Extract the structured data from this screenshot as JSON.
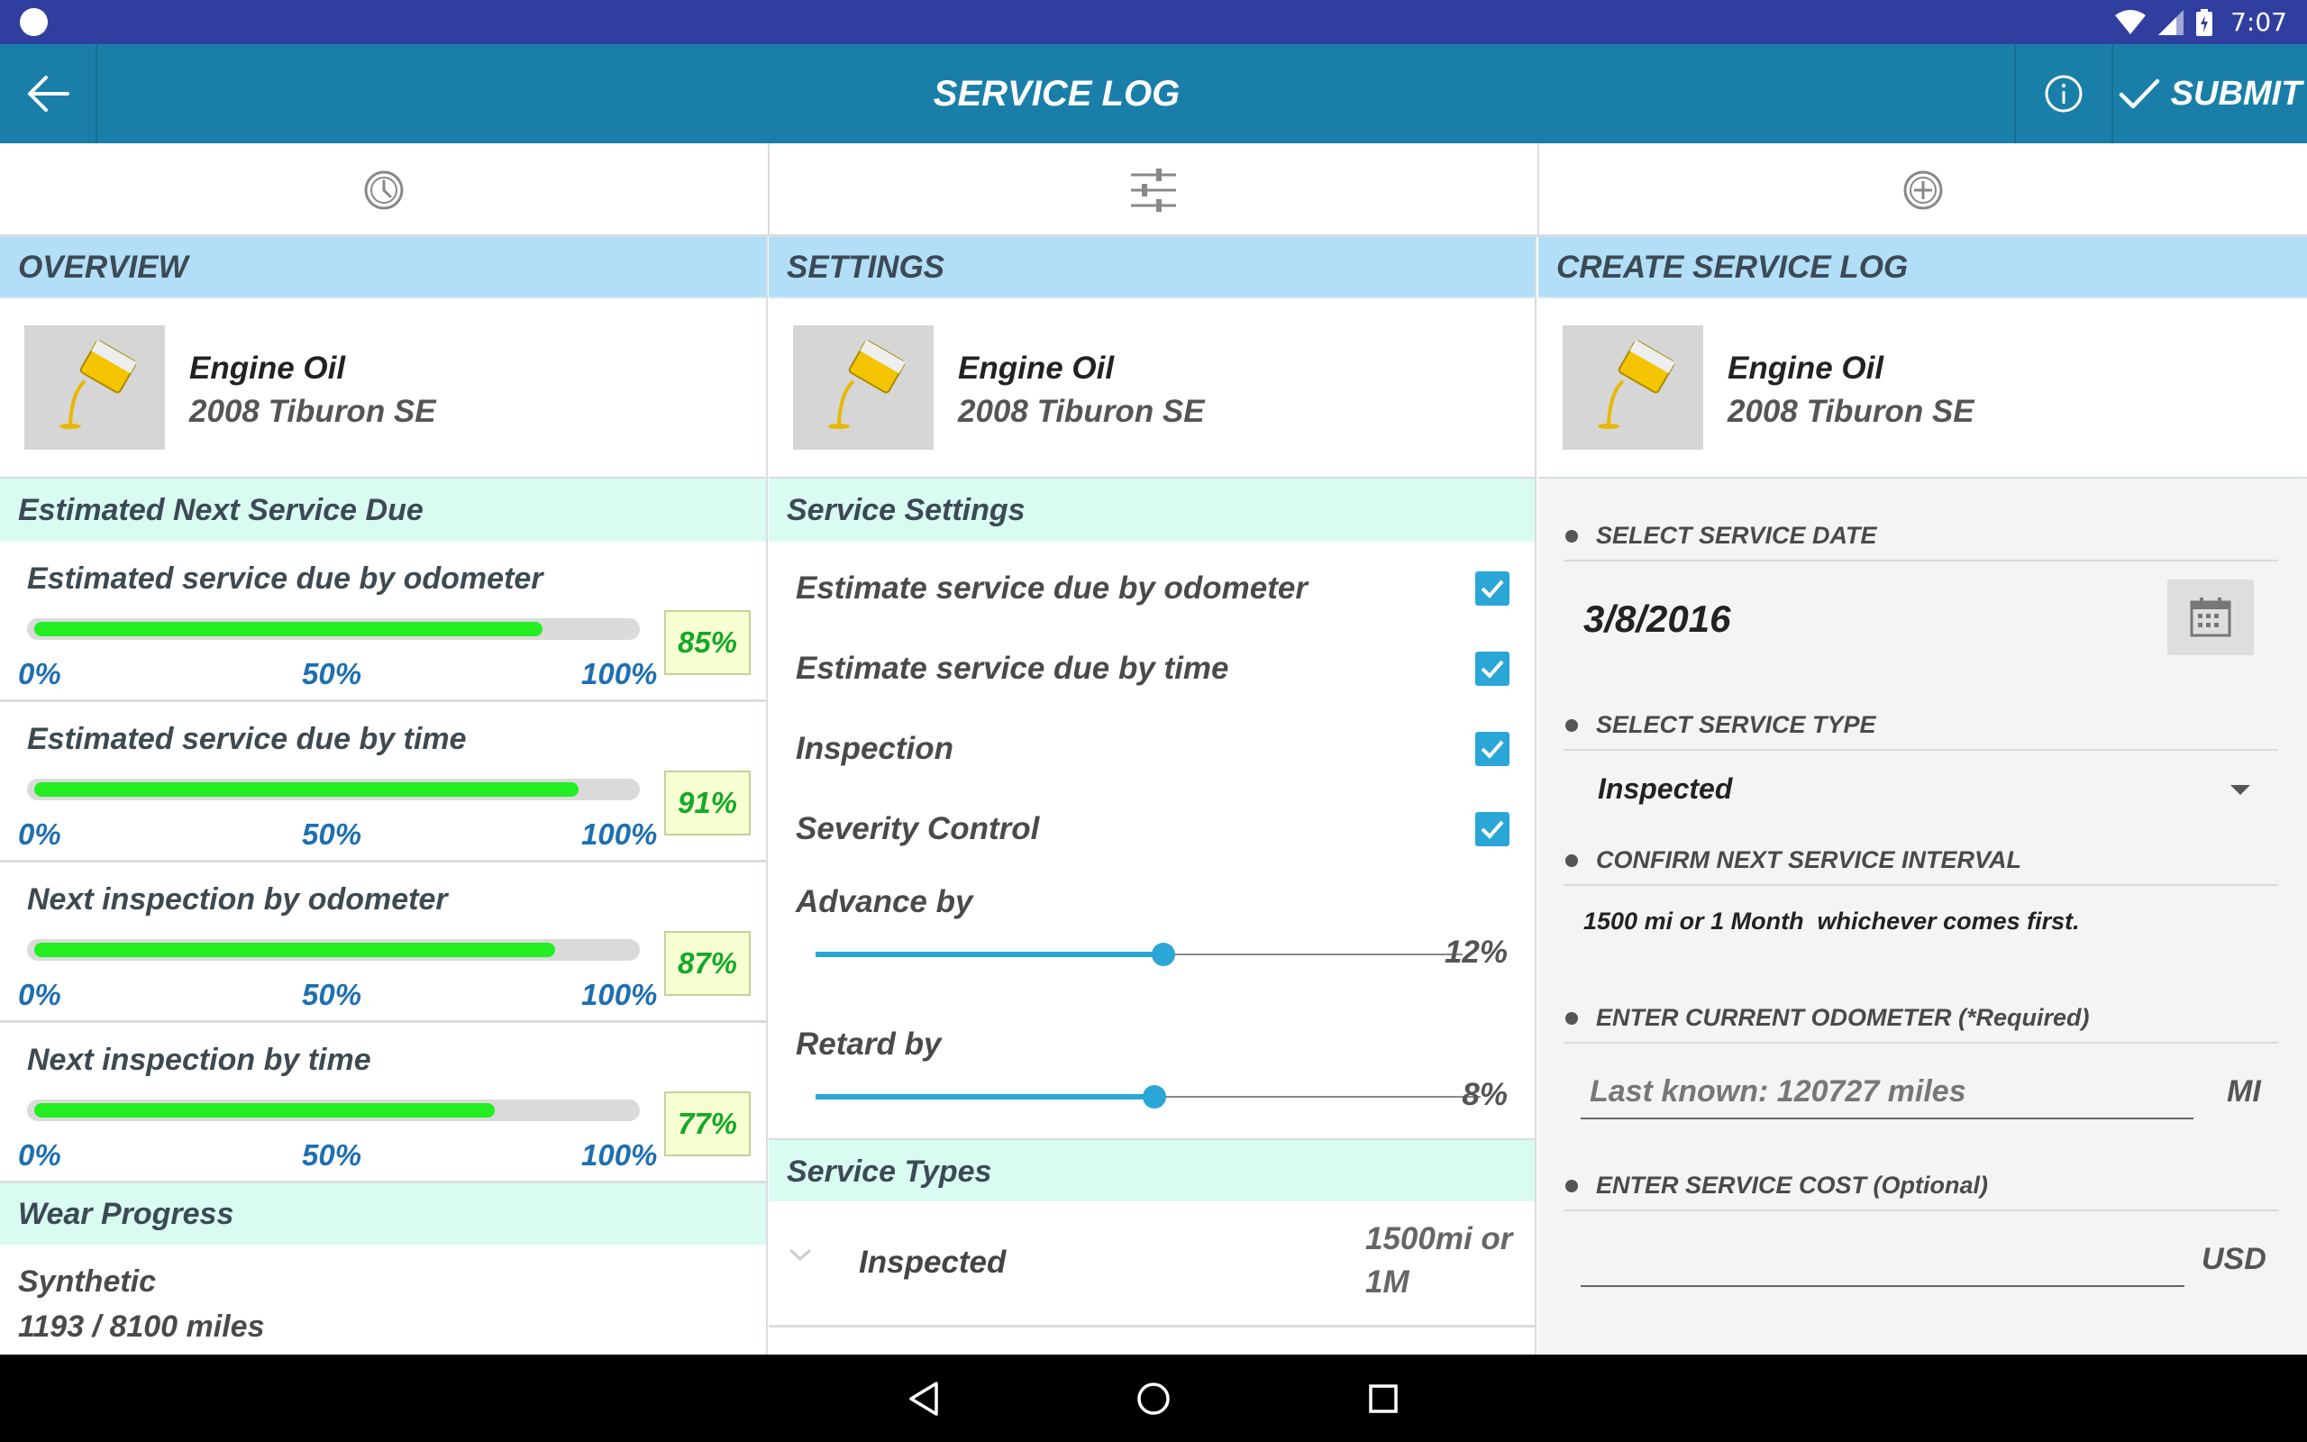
{
  "status_bar": {
    "time": "7:07",
    "icons": [
      "wifi-icon",
      "signal-icon",
      "battery-charging-icon"
    ]
  },
  "app_bar": {
    "title": "SERVICE LOG",
    "submit_label": "SUBMIT",
    "back_icon": "back-arrow-icon",
    "info_icon": "info-icon",
    "submit_icon": "check-icon"
  },
  "tabs": [
    {
      "icon": "clock-icon"
    },
    {
      "icon": "sliders-icon"
    },
    {
      "icon": "plus-circle-icon"
    }
  ],
  "overview": {
    "heading": "OVERVIEW",
    "item_name": "Engine Oil",
    "vehicle": "2008 Tiburon SE",
    "section_title": "Estimated Next Service Due",
    "ticks": [
      "0%",
      "50%",
      "100%"
    ],
    "progress": [
      {
        "label": "Estimated service due by odometer",
        "percent": 85,
        "percent_text": "85%"
      },
      {
        "label": "Estimated service due by time",
        "percent": 91,
        "percent_text": "91%"
      },
      {
        "label": "Next inspection by odometer",
        "percent": 87,
        "percent_text": "87%"
      },
      {
        "label": "Next inspection by time",
        "percent": 77,
        "percent_text": "77%"
      }
    ],
    "wear_title": "Wear Progress",
    "wear_type": "Synthetic",
    "wear_miles": "1193 / 8100 miles"
  },
  "settings": {
    "heading": "SETTINGS",
    "item_name": "Engine Oil",
    "vehicle": "2008 Tiburon SE",
    "section_title": "Service Settings",
    "checkboxes": [
      {
        "label": "Estimate service due by odometer",
        "checked": true
      },
      {
        "label": "Estimate service due by time",
        "checked": true
      },
      {
        "label": "Inspection",
        "checked": true
      },
      {
        "label": "Severity Control",
        "checked": true
      }
    ],
    "advance": {
      "label": "Advance by",
      "value": 12,
      "value_text": "12%"
    },
    "retard": {
      "label": "Retard by",
      "value": 8,
      "value_text": "8%"
    },
    "types_title": "Service Types",
    "types": [
      {
        "name": "Inspected",
        "interval": "1500mi or 1M"
      }
    ]
  },
  "create": {
    "heading": "CREATE SERVICE LOG",
    "item_name": "Engine Oil",
    "vehicle": "2008 Tiburon SE",
    "date_label": "SELECT SERVICE DATE",
    "date_value": "3/8/2016",
    "type_label": "SELECT SERVICE TYPE",
    "type_value": "Inspected",
    "interval_label": "CONFIRM NEXT SERVICE INTERVAL",
    "interval_text": "1500 mi or 1 Month  whichever comes first.",
    "odometer_label": "ENTER CURRENT ODOMETER (*Required)",
    "odometer_placeholder": "Last known: 120727 miles",
    "odometer_unit": "MI",
    "cost_label": "ENTER SERVICE COST (Optional)",
    "cost_placeholder": "",
    "cost_unit": "USD"
  },
  "colors": {
    "app_bar": "#1a7fa8",
    "status_bar": "#303f9f",
    "section_header": "#b3def7",
    "sub_header": "#d9fbf2",
    "progress_fill": "#22ee22",
    "accent": "#2aa7d6"
  }
}
